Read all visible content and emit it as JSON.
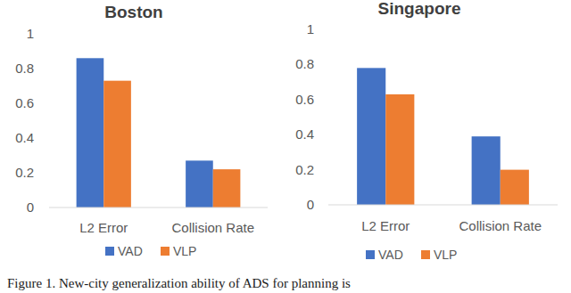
{
  "chart_data": [
    {
      "type": "bar",
      "title": "Boston",
      "categories": [
        "L2 Error",
        "Collision Rate"
      ],
      "series": [
        {
          "name": "VAD",
          "color": "#4472c4",
          "values": [
            0.86,
            0.27
          ]
        },
        {
          "name": "VLP",
          "color": "#ed7d31",
          "values": [
            0.73,
            0.22
          ]
        }
      ],
      "ylim": [
        0,
        1
      ],
      "yticks": [
        0,
        0.2,
        0.4,
        0.6,
        0.8,
        1
      ],
      "grid": false,
      "legend": "bottom"
    },
    {
      "type": "bar",
      "title": "Singapore",
      "categories": [
        "L2 Error",
        "Collision Rate"
      ],
      "series": [
        {
          "name": "VAD",
          "color": "#4472c4",
          "values": [
            0.78,
            0.39
          ]
        },
        {
          "name": "VLP",
          "color": "#ed7d31",
          "values": [
            0.63,
            0.2
          ]
        }
      ],
      "ylim": [
        0,
        1
      ],
      "yticks": [
        0,
        0.2,
        0.4,
        0.6,
        0.8,
        1
      ],
      "grid": false,
      "legend": "bottom"
    }
  ],
  "caption": "Figure 1. New-city generalization ability of ADS for planning is"
}
